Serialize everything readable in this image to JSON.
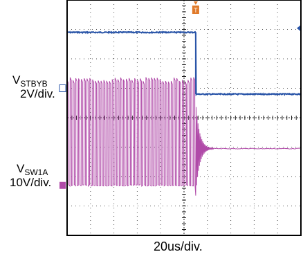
{
  "chart_data": {
    "type": "line",
    "time_per_div_label": "20us/div.",
    "x_divisions": 10,
    "y_divisions": 8,
    "trigger_marker": "T",
    "channels": [
      {
        "id": "1",
        "name_main": "V",
        "name_sub": "STBYB",
        "scale_label": "2V/div.",
        "color": "#2a55a8",
        "description_values": {
          "high_div": 6.9,
          "low_div": 4.8,
          "step_time_div": 5.5
        }
      },
      {
        "id": "2",
        "name_main": "V",
        "name_sub": "SW1A",
        "scale_label": "10V/div.",
        "color": "#b04aa8",
        "description_values": {
          "low_div": 1.7,
          "high_div": 5.3,
          "settle_div": 2.95,
          "stop_time_div": 5.5
        }
      }
    ],
    "trigger_color": "#e07a2a",
    "grid": true,
    "axis_ticks_center": true
  }
}
